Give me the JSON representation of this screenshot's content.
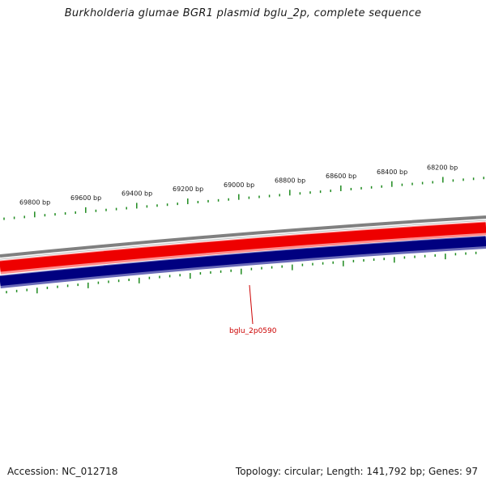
{
  "title": "Burkholderia glumae BGR1 plasmid bglu_2p, complete sequence",
  "footer": {
    "accession": "Accession: NC_012718",
    "summary": "Topology: circular; Length: 141,792 bp; Genes: 97"
  },
  "map": {
    "tick_labels": [
      "69800 bp",
      "69600 bp",
      "69400 bp",
      "69200 bp",
      "69000 bp",
      "68800 bp",
      "68600 bp",
      "68400 bp",
      "68200 bp"
    ],
    "gene_label": "bglu_2p0590",
    "colors": {
      "backbone": "#808080",
      "forward_strand": "#ee0000",
      "forward_strand_light": "#ff7777",
      "reverse_strand": "#000080",
      "reverse_strand_light": "#6a6ab8",
      "ticks": "#1e8a1e",
      "gene_label": "#cc0000"
    }
  }
}
